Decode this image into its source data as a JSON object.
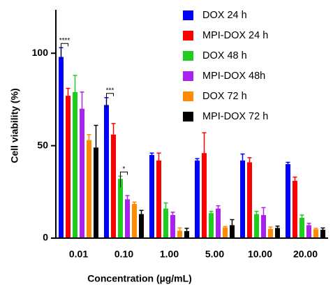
{
  "chart_data": {
    "type": "bar",
    "x_label": "Concentration (µg/mL)",
    "y_label": "Cell viability (%)",
    "categories": [
      "0.01",
      "0.10",
      "1.00",
      "5.00",
      "10.00",
      "20.00"
    ],
    "series": [
      {
        "name": "DOX 24 h",
        "color": "#0000ff",
        "values": [
          98,
          72,
          45,
          42,
          42,
          40
        ],
        "errors": [
          5,
          4,
          1,
          1,
          3.5,
          1
        ]
      },
      {
        "name": "MPI-DOX 24 h",
        "color": "#ff0000",
        "values": [
          77,
          56,
          42,
          46,
          41,
          31
        ],
        "errors": [
          4,
          6,
          4,
          11,
          2.5,
          2
        ]
      },
      {
        "name": "DOX 48 h",
        "color": "#1fcc1f",
        "values": [
          79,
          32,
          16,
          13.5,
          13,
          11
        ],
        "errors": [
          9,
          1.5,
          3,
          1,
          1.5,
          1.5
        ]
      },
      {
        "name": "MPI-DOX 48h",
        "color": "#aa22ee",
        "values": [
          70,
          21,
          12.5,
          16,
          12.5,
          7
        ],
        "errors": [
          9,
          2,
          1.5,
          1.5,
          4,
          1
        ]
      },
      {
        "name": "DOX 72 h",
        "color": "#ff8c00",
        "values": [
          53,
          18.5,
          4,
          5.8,
          5,
          4.8
        ],
        "errors": [
          3,
          1,
          1.5,
          0.5,
          1,
          0.5
        ]
      },
      {
        "name": "MPI-DOX 72 h",
        "color": "#000000",
        "values": [
          49,
          13,
          3.8,
          7,
          5.5,
          4.5
        ],
        "errors": [
          12,
          2,
          1.5,
          3,
          1,
          1
        ]
      }
    ],
    "annotations": [
      {
        "text": "****",
        "category": "0.01",
        "between": [
          "DOX 24 h",
          "MPI-DOX 24 h"
        ]
      },
      {
        "text": "***",
        "category": "0.10",
        "between": [
          "DOX 24 h",
          "MPI-DOX 24 h"
        ]
      },
      {
        "text": "*",
        "category": "0.10",
        "between": [
          "DOX 48 h",
          "MPI-DOX 48h"
        ]
      }
    ],
    "ylim": [
      0,
      122
    ],
    "yticks": [
      0,
      50,
      100
    ],
    "legend": "upper right"
  }
}
